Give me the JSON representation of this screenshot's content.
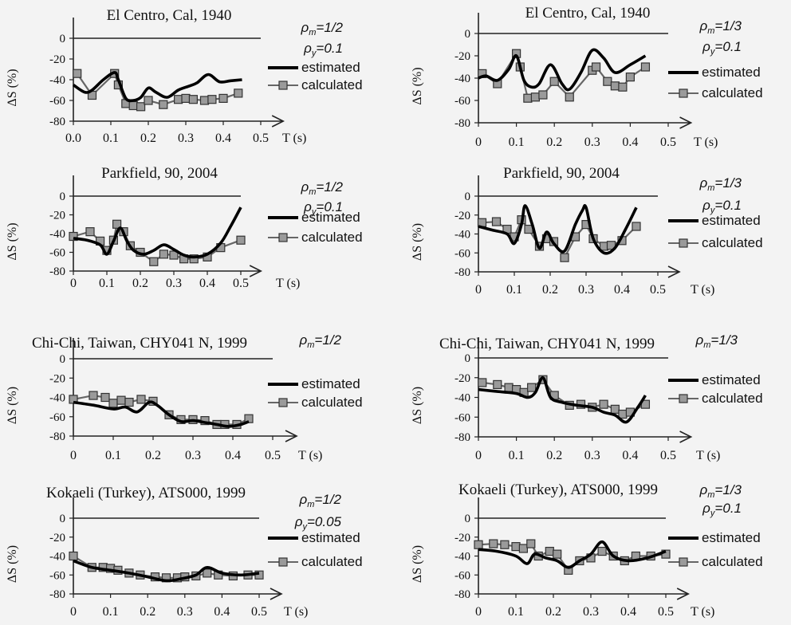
{
  "chart_data": [
    {
      "type": "line",
      "title": "El Centro, Cal, 1940",
      "rho_m": "1/2",
      "rho_y": "0.1",
      "xlabel": "T (s)",
      "ylabel": "ΔS (%)",
      "xlim": [
        0,
        0.5
      ],
      "ylim": [
        -80,
        0
      ],
      "xticks": [
        "0.0",
        "0.1",
        "0.2",
        "0.3",
        "0.4",
        "0.5"
      ],
      "yticks": [
        "0",
        "-20",
        "-40",
        "-60",
        "-80"
      ],
      "legend": [
        "estimated",
        "calculated"
      ],
      "series": [
        {
          "name": "estimated",
          "x": [
            0,
            0.03,
            0.05,
            0.08,
            0.11,
            0.12,
            0.14,
            0.16,
            0.18,
            0.2,
            0.22,
            0.25,
            0.28,
            0.31,
            0.33,
            0.36,
            0.39,
            0.42,
            0.45
          ],
          "y": [
            -45,
            -52,
            -50,
            -40,
            -33,
            -40,
            -58,
            -60,
            -57,
            -48,
            -52,
            -57,
            -50,
            -46,
            -43,
            -35,
            -42,
            -41,
            -40
          ]
        },
        {
          "name": "calculated",
          "x": [
            0.01,
            0.05,
            0.11,
            0.12,
            0.14,
            0.16,
            0.18,
            0.2,
            0.24,
            0.28,
            0.3,
            0.32,
            0.35,
            0.37,
            0.4,
            0.44
          ],
          "y": [
            -34,
            -55,
            -34,
            -45,
            -63,
            -65,
            -66,
            -60,
            -64,
            -59,
            -58,
            -59,
            -60,
            -59,
            -58,
            -53
          ]
        }
      ]
    },
    {
      "type": "line",
      "title": "El Centro, Cal,  1940",
      "rho_m": "1/3",
      "rho_y": "0.1",
      "xlabel": "T (s)",
      "ylabel": "ΔS (%)",
      "xlim": [
        0,
        0.5
      ],
      "ylim": [
        -80,
        0
      ],
      "xticks": [
        "0",
        "0.1",
        "0.2",
        "0.3",
        "0.4",
        "0.5"
      ],
      "yticks": [
        "0",
        "-20",
        "-40",
        "-60",
        "-80"
      ],
      "legend": [
        "estimated",
        "calculated"
      ],
      "series": [
        {
          "name": "estimated",
          "x": [
            0,
            0.02,
            0.05,
            0.08,
            0.1,
            0.12,
            0.14,
            0.16,
            0.19,
            0.22,
            0.24,
            0.27,
            0.3,
            0.33,
            0.36,
            0.4,
            0.44
          ],
          "y": [
            -40,
            -38,
            -42,
            -32,
            -20,
            -42,
            -48,
            -45,
            -28,
            -45,
            -50,
            -35,
            -15,
            -22,
            -35,
            -28,
            -20
          ]
        },
        {
          "name": "calculated",
          "x": [
            0.01,
            0.05,
            0.1,
            0.11,
            0.13,
            0.15,
            0.17,
            0.2,
            0.24,
            0.3,
            0.31,
            0.34,
            0.36,
            0.38,
            0.4,
            0.44
          ],
          "y": [
            -36,
            -45,
            -18,
            -30,
            -58,
            -57,
            -55,
            -43,
            -57,
            -33,
            -30,
            -43,
            -47,
            -48,
            -39,
            -30
          ]
        }
      ]
    },
    {
      "type": "line",
      "title": "Parkfield, 90,  2004",
      "rho_m": "1/2",
      "rho_y": "0.1",
      "xlabel": "T (s)",
      "ylabel": "ΔS (%)",
      "xlim": [
        0,
        0.5
      ],
      "ylim": [
        -80,
        0
      ],
      "xticks": [
        "0",
        "0.1",
        "0.2",
        "0.3",
        "0.4",
        "0.5"
      ],
      "yticks": [
        "0",
        "-20",
        "-40",
        "-60",
        "-80"
      ],
      "legend": [
        "estimated",
        "calculated"
      ],
      "series": [
        {
          "name": "estimated",
          "x": [
            0,
            0.04,
            0.08,
            0.1,
            0.12,
            0.14,
            0.16,
            0.18,
            0.21,
            0.24,
            0.27,
            0.3,
            0.33,
            0.36,
            0.4,
            0.44,
            0.47,
            0.5
          ],
          "y": [
            -45,
            -47,
            -52,
            -62,
            -48,
            -34,
            -48,
            -58,
            -62,
            -58,
            -52,
            -57,
            -63,
            -65,
            -62,
            -50,
            -32,
            -12
          ]
        },
        {
          "name": "calculated",
          "x": [
            0,
            0.05,
            0.08,
            0.1,
            0.12,
            0.13,
            0.15,
            0.17,
            0.2,
            0.24,
            0.27,
            0.3,
            0.33,
            0.36,
            0.4,
            0.44,
            0.5
          ],
          "y": [
            -43,
            -38,
            -48,
            -58,
            -47,
            -30,
            -38,
            -53,
            -60,
            -70,
            -62,
            -63,
            -67,
            -67,
            -65,
            -55,
            -47
          ]
        }
      ]
    },
    {
      "type": "line",
      "title": "Parkfield, 90,  2004",
      "rho_m": "1/3",
      "rho_y": "0.1",
      "xlabel": "T (s)",
      "ylabel": "ΔS (%)",
      "xlim": [
        0,
        0.5
      ],
      "ylim": [
        -80,
        0
      ],
      "xticks": [
        "0",
        "0.1",
        "0.2",
        "0.3",
        "0.4",
        "0.5"
      ],
      "yticks": [
        "0",
        "-20",
        "-40",
        "-60",
        "-80"
      ],
      "legend": [
        "estimated",
        "calculated"
      ],
      "series": [
        {
          "name": "estimated",
          "x": [
            0,
            0.04,
            0.08,
            0.1,
            0.12,
            0.13,
            0.15,
            0.17,
            0.19,
            0.21,
            0.24,
            0.27,
            0.29,
            0.3,
            0.32,
            0.35,
            0.38,
            0.41,
            0.44
          ],
          "y": [
            -32,
            -36,
            -40,
            -50,
            -30,
            -10,
            -30,
            -55,
            -38,
            -50,
            -58,
            -30,
            -15,
            -12,
            -45,
            -60,
            -55,
            -35,
            -12
          ]
        },
        {
          "name": "calculated",
          "x": [
            0.01,
            0.05,
            0.08,
            0.1,
            0.12,
            0.14,
            0.17,
            0.19,
            0.21,
            0.24,
            0.27,
            0.3,
            0.32,
            0.35,
            0.37,
            0.4,
            0.44
          ],
          "y": [
            -28,
            -27,
            -35,
            -43,
            -25,
            -35,
            -53,
            -45,
            -48,
            -65,
            -43,
            -30,
            -45,
            -53,
            -52,
            -47,
            -32
          ]
        }
      ]
    },
    {
      "type": "line",
      "title": "Chi-Chi, Taiwan, CHY041 N, 1999",
      "rho_m": "1/2",
      "rho_y": "",
      "xlabel": "T (s)",
      "ylabel": "ΔS (%)",
      "xlim": [
        0,
        0.5
      ],
      "ylim": [
        -80,
        0
      ],
      "xticks": [
        "0",
        "0.1",
        "0.2",
        "0.3",
        "0.4",
        "0.5"
      ],
      "yticks": [
        "0",
        "-20",
        "-40",
        "-60",
        "-80"
      ],
      "legend": [
        "estimated",
        "calculated"
      ],
      "series": [
        {
          "name": "estimated",
          "x": [
            0,
            0.05,
            0.1,
            0.13,
            0.16,
            0.19,
            0.21,
            0.24,
            0.27,
            0.3,
            0.33,
            0.36,
            0.39,
            0.42,
            0.44
          ],
          "y": [
            -45,
            -48,
            -52,
            -50,
            -55,
            -45,
            -48,
            -58,
            -65,
            -64,
            -66,
            -68,
            -70,
            -68,
            -65
          ]
        },
        {
          "name": "calculated",
          "x": [
            0,
            0.05,
            0.08,
            0.1,
            0.12,
            0.14,
            0.17,
            0.2,
            0.24,
            0.27,
            0.3,
            0.33,
            0.36,
            0.38,
            0.41,
            0.44
          ],
          "y": [
            -42,
            -38,
            -40,
            -46,
            -43,
            -45,
            -42,
            -44,
            -58,
            -63,
            -63,
            -64,
            -68,
            -68,
            -68,
            -62
          ]
        }
      ]
    },
    {
      "type": "line",
      "title": "Chi-Chi, Taiwan, CHY041 N, 1999",
      "rho_m": "1/3",
      "rho_y": "",
      "xlabel": "T (s)",
      "ylabel": "ΔS (%)",
      "xlim": [
        0,
        0.5
      ],
      "ylim": [
        -80,
        0
      ],
      "xticks": [
        "0",
        "0.1",
        "0.2",
        "0.3",
        "0.4",
        "0.5"
      ],
      "yticks": [
        "0",
        "-20",
        "-40",
        "-60",
        "-80"
      ],
      "legend": [
        "estimated",
        "calculated"
      ],
      "series": [
        {
          "name": "estimated",
          "x": [
            0,
            0.05,
            0.1,
            0.13,
            0.15,
            0.17,
            0.19,
            0.22,
            0.26,
            0.3,
            0.33,
            0.36,
            0.39,
            0.42,
            0.44
          ],
          "y": [
            -32,
            -34,
            -36,
            -40,
            -35,
            -20,
            -40,
            -45,
            -48,
            -50,
            -55,
            -58,
            -65,
            -50,
            -38
          ]
        },
        {
          "name": "calculated",
          "x": [
            0.01,
            0.05,
            0.08,
            0.1,
            0.12,
            0.14,
            0.17,
            0.2,
            0.24,
            0.27,
            0.3,
            0.33,
            0.36,
            0.38,
            0.4,
            0.44
          ],
          "y": [
            -25,
            -27,
            -30,
            -32,
            -35,
            -30,
            -22,
            -38,
            -48,
            -47,
            -50,
            -47,
            -52,
            -57,
            -55,
            -47
          ]
        }
      ]
    },
    {
      "type": "line",
      "title": "Kokaeli (Turkey), ATS000, 1999",
      "rho_m": "1/2",
      "rho_y": "0.05",
      "xlabel": "T (s)",
      "ylabel": "ΔS (%)",
      "xlim": [
        0,
        0.5
      ],
      "ylim": [
        -80,
        0
      ],
      "xticks": [
        "0",
        "0.1",
        "0.2",
        "0.3",
        "0.4",
        "0.5"
      ],
      "yticks": [
        "0",
        "-20",
        "-40",
        "-60",
        "-80"
      ],
      "legend": [
        "estimated",
        "calculated"
      ],
      "series": [
        {
          "name": "estimated",
          "x": [
            0,
            0.05,
            0.1,
            0.15,
            0.2,
            0.25,
            0.29,
            0.33,
            0.36,
            0.4,
            0.45,
            0.5
          ],
          "y": [
            -45,
            -52,
            -55,
            -58,
            -62,
            -66,
            -64,
            -60,
            -52,
            -58,
            -60,
            -58
          ]
        },
        {
          "name": "calculated",
          "x": [
            0,
            0.05,
            0.08,
            0.1,
            0.12,
            0.15,
            0.18,
            0.22,
            0.25,
            0.28,
            0.3,
            0.33,
            0.36,
            0.39,
            0.43,
            0.47,
            0.5
          ],
          "y": [
            -40,
            -52,
            -52,
            -53,
            -55,
            -58,
            -60,
            -62,
            -63,
            -63,
            -62,
            -61,
            -58,
            -60,
            -61,
            -60,
            -60
          ]
        }
      ]
    },
    {
      "type": "line",
      "title": "Kokaeli (Turkey), ATS000, 1999",
      "rho_m": "1/3",
      "rho_y": "0.1",
      "xlabel": "T (s)",
      "ylabel": "ΔS (%)",
      "xlim": [
        0,
        0.5
      ],
      "ylim": [
        -80,
        0
      ],
      "xticks": [
        "0",
        "0.1",
        "0.2",
        "0.3",
        "0.4",
        "0.5"
      ],
      "yticks": [
        "0",
        "-20",
        "-40",
        "-60",
        "-80"
      ],
      "legend": [
        "estimated",
        "calculated"
      ],
      "series": [
        {
          "name": "estimated",
          "x": [
            0,
            0.05,
            0.1,
            0.13,
            0.15,
            0.18,
            0.21,
            0.24,
            0.27,
            0.3,
            0.33,
            0.36,
            0.4,
            0.45,
            0.5
          ],
          "y": [
            -33,
            -35,
            -40,
            -48,
            -38,
            -42,
            -45,
            -52,
            -45,
            -38,
            -25,
            -40,
            -45,
            -42,
            -35
          ]
        },
        {
          "name": "calculated",
          "x": [
            0,
            0.04,
            0.07,
            0.1,
            0.12,
            0.14,
            0.16,
            0.19,
            0.21,
            0.24,
            0.27,
            0.3,
            0.33,
            0.36,
            0.39,
            0.42,
            0.46,
            0.5
          ],
          "y": [
            -28,
            -27,
            -28,
            -30,
            -32,
            -27,
            -40,
            -35,
            -38,
            -55,
            -45,
            -42,
            -35,
            -40,
            -45,
            -40,
            -40,
            -38
          ]
        }
      ]
    }
  ]
}
